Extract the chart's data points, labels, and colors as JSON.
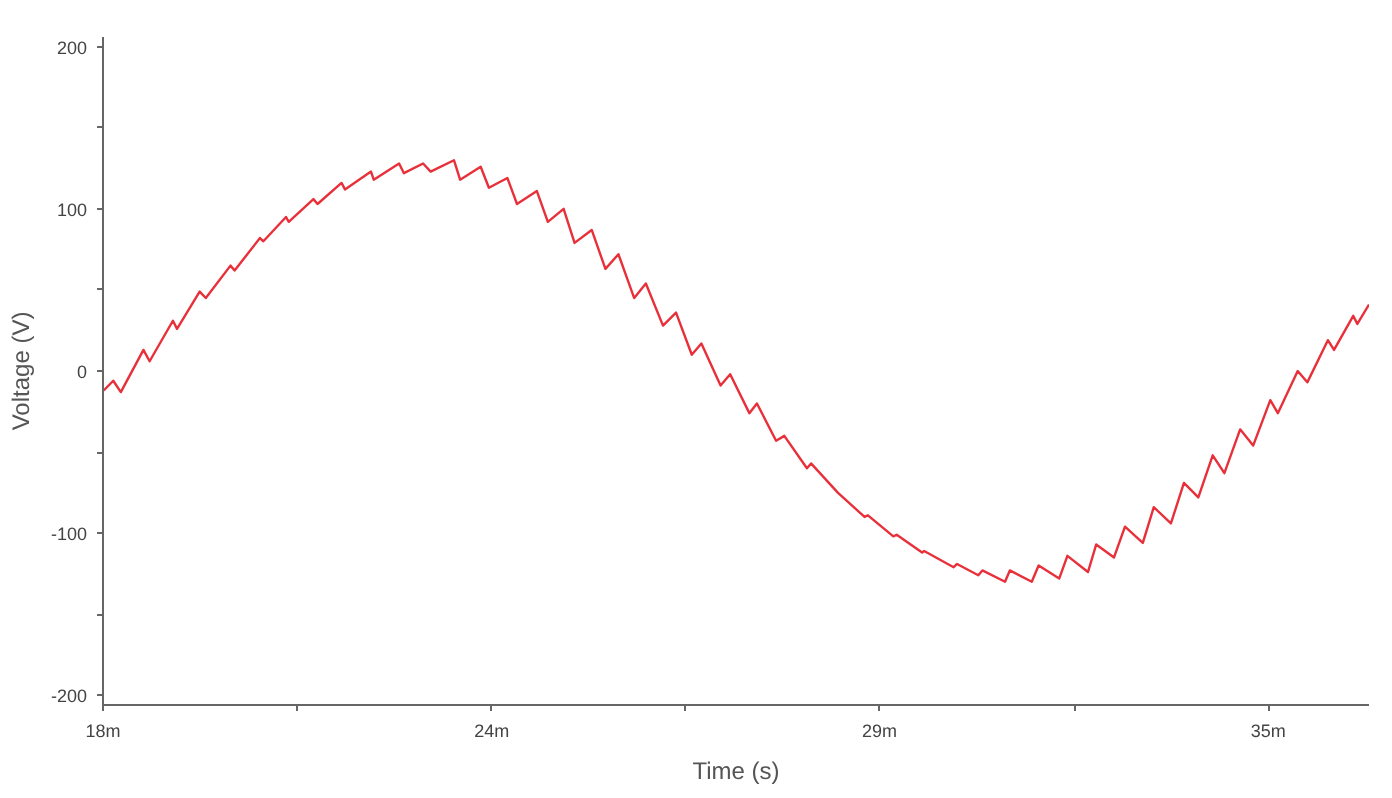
{
  "chart_data": {
    "type": "line",
    "xlabel": "Time (s)",
    "ylabel": "Voltage (V)",
    "xlim": [
      18,
      36.47
    ],
    "ylim": [
      -206,
      206
    ],
    "xticks": [
      {
        "value": 18,
        "label": "18m"
      },
      {
        "value": 20.83,
        "label": null
      },
      {
        "value": 23.67,
        "label": "24m"
      },
      {
        "value": 26.5,
        "label": null
      },
      {
        "value": 29.33,
        "label": "29m"
      },
      {
        "value": 32.17,
        "label": null
      },
      {
        "value": 35,
        "label": "35m"
      }
    ],
    "yticks": [
      -200,
      {
        "value": -150,
        "label": null
      },
      -100,
      {
        "value": -50,
        "label": null
      },
      0,
      {
        "value": 50,
        "label": null
      },
      100,
      {
        "value": 150,
        "label": null
      },
      200
    ],
    "grid": false,
    "marker": "none",
    "line_style": "solid",
    "series": [
      {
        "color": "#e8303a",
        "x": [
          18.01,
          18.15,
          18.26,
          18.59,
          18.68,
          19.02,
          19.08,
          19.41,
          19.5,
          19.86,
          19.92,
          20.29,
          20.34,
          20.67,
          20.71,
          21.07,
          21.13,
          21.48,
          21.53,
          21.91,
          21.95,
          22.32,
          22.39,
          22.67,
          22.78,
          23.12,
          23.21,
          23.51,
          23.63,
          23.9,
          24.04,
          24.33,
          24.49,
          24.72,
          24.88,
          25.13,
          25.33,
          25.52,
          25.75,
          25.92,
          26.17,
          26.36,
          26.59,
          26.73,
          27.01,
          27.15,
          27.43,
          27.54,
          27.82,
          27.94,
          28.27,
          28.33,
          28.72,
          29.11,
          29.16,
          29.53,
          29.58,
          29.95,
          29.98,
          30.41,
          30.46,
          30.77,
          30.83,
          31.16,
          31.23,
          31.55,
          31.65,
          31.95,
          32.07,
          32.37,
          32.49,
          32.75,
          32.91,
          33.17,
          33.33,
          33.58,
          33.77,
          33.98,
          34.19,
          34.36,
          34.59,
          34.78,
          35.03,
          35.14,
          35.43,
          35.57,
          35.87,
          35.96,
          36.24,
          36.3,
          36.47
        ],
        "values": [
          -12,
          -6,
          -13,
          13,
          6,
          31,
          26,
          49,
          45,
          65,
          62,
          82,
          80,
          95,
          92,
          106,
          103,
          116,
          112,
          123,
          118,
          128,
          122,
          128,
          123,
          130,
          118,
          126,
          113,
          119,
          103,
          111,
          92,
          100,
          79,
          87,
          63,
          72,
          45,
          54,
          28,
          36,
          10,
          17,
          -9,
          -2,
          -26,
          -20,
          -43,
          -40,
          -60,
          -57,
          -75,
          -90,
          -89,
          -102,
          -101,
          -112,
          -111,
          -121,
          -119,
          -126,
          -123,
          -130,
          -123,
          -130,
          -120,
          -128,
          -114,
          -124,
          -107,
          -115,
          -96,
          -106,
          -84,
          -94,
          -69,
          -78,
          -52,
          -63,
          -36,
          -46,
          -18,
          -26,
          0,
          -7,
          19,
          13,
          34,
          29,
          41
        ]
      }
    ]
  }
}
